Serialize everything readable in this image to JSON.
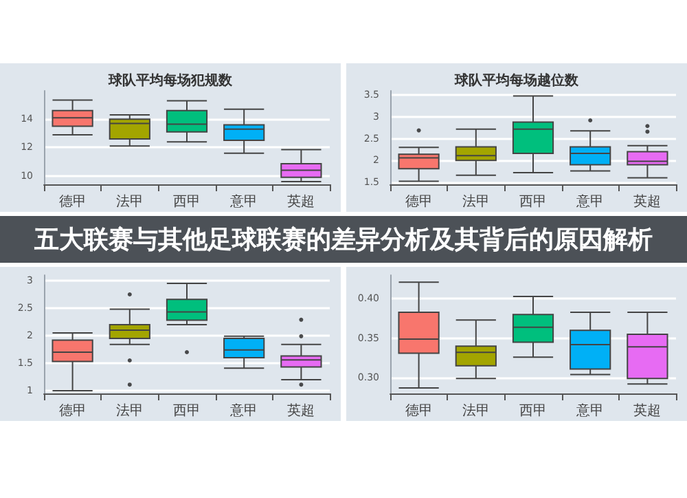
{
  "chart_data": [
    {
      "type": "box",
      "title": "球队平均每场犯规数",
      "categories": [
        "德甲",
        "法甲",
        "西甲",
        "意甲",
        "英超"
      ],
      "colors": [
        "#f8766d",
        "#a3a500",
        "#00bf7d",
        "#00b0f6",
        "#e76bf3"
      ],
      "ylim": [
        9.4,
        16
      ],
      "yticks": [
        10,
        12,
        14
      ],
      "grid": "y",
      "boxes": [
        {
          "low": 12.9,
          "q1": 13.5,
          "median": 14.1,
          "q3": 14.6,
          "high": 15.35
        },
        {
          "low": 12.1,
          "q1": 12.6,
          "median": 13.7,
          "q3": 14.0,
          "high": 14.3
        },
        {
          "low": 12.4,
          "q1": 13.1,
          "median": 13.65,
          "q3": 14.6,
          "high": 15.3
        },
        {
          "low": 11.6,
          "q1": 12.5,
          "median": 13.3,
          "q3": 13.6,
          "high": 14.7
        },
        {
          "low": 9.6,
          "q1": 9.9,
          "median": 10.4,
          "q3": 10.85,
          "high": 11.85
        }
      ]
    },
    {
      "type": "box",
      "title": "球队平均每场越位数",
      "categories": [
        "德甲",
        "法甲",
        "西甲",
        "意甲",
        "英超"
      ],
      "colors": [
        "#f8766d",
        "#a3a500",
        "#00bf7d",
        "#00b0f6",
        "#e76bf3"
      ],
      "ylim": [
        1.45,
        3.6
      ],
      "yticks": [
        1.5,
        2.0,
        2.5,
        3.0,
        3.5
      ],
      "grid": "y",
      "boxes": [
        {
          "low": 1.52,
          "q1": 1.81,
          "median": 2.06,
          "q3": 2.14,
          "high": 2.3,
          "outliers": [
            2.69
          ]
        },
        {
          "low": 1.66,
          "q1": 2.0,
          "median": 2.11,
          "q3": 2.31,
          "high": 2.72
        },
        {
          "low": 1.72,
          "q1": 2.16,
          "median": 2.72,
          "q3": 2.88,
          "high": 3.48
        },
        {
          "low": 1.76,
          "q1": 1.9,
          "median": 2.16,
          "q3": 2.31,
          "high": 2.68,
          "outliers": [
            2.92
          ]
        },
        {
          "low": 1.6,
          "q1": 1.9,
          "median": 1.98,
          "q3": 2.2,
          "high": 2.34,
          "outliers": [
            2.79,
            2.66
          ]
        }
      ]
    },
    {
      "type": "other",
      "title": "五大联赛与其他足球联赛的差异分析及其背后的原因解析"
    },
    {
      "type": "box",
      "categories": [
        "德甲",
        "法甲",
        "西甲",
        "意甲",
        "英超"
      ],
      "colors": [
        "#f8766d",
        "#a3a500",
        "#00bf7d",
        "#00b0f6",
        "#e76bf3"
      ],
      "ylim": [
        0.95,
        3.1
      ],
      "yticks": [
        1.0,
        1.5,
        2.0,
        2.5,
        3.0
      ],
      "grid": "y",
      "boxes": [
        {
          "low": 1.0,
          "q1": 1.53,
          "median": 1.7,
          "q3": 1.92,
          "high": 2.05
        },
        {
          "low": 1.84,
          "q1": 1.95,
          "median": 2.1,
          "q3": 2.2,
          "high": 2.48,
          "outliers": [
            2.75,
            1.55,
            1.11
          ]
        },
        {
          "low": 2.2,
          "q1": 2.28,
          "median": 2.43,
          "q3": 2.66,
          "high": 2.95,
          "outliers": [
            1.7
          ]
        },
        {
          "low": 1.41,
          "q1": 1.6,
          "median": 1.74,
          "q3": 1.95,
          "high": 1.99
        },
        {
          "low": 1.2,
          "q1": 1.43,
          "median": 1.56,
          "q3": 1.63,
          "high": 1.84,
          "outliers": [
            2.29,
            1.99,
            1.11
          ]
        }
      ]
    },
    {
      "type": "box",
      "categories": [
        "德甲",
        "法甲",
        "西甲",
        "意甲",
        "英超"
      ],
      "colors": [
        "#f8766d",
        "#a3a500",
        "#00bf7d",
        "#00b0f6",
        "#e76bf3"
      ],
      "ylim": [
        0.28,
        0.43
      ],
      "yticks": [
        {
          "value": 0.3,
          "label": "0.30"
        },
        {
          "value": 0.35,
          "label": "0.35"
        },
        {
          "value": 0.4,
          "label": "0.40"
        }
      ],
      "grid": "y",
      "boxes": [
        {
          "low": 0.287,
          "q1": 0.331,
          "median": 0.349,
          "q3": 0.383,
          "high": 0.421
        },
        {
          "low": 0.299,
          "q1": 0.315,
          "median": 0.332,
          "q3": 0.34,
          "high": 0.373
        },
        {
          "low": 0.326,
          "q1": 0.345,
          "median": 0.364,
          "q3": 0.38,
          "high": 0.403
        },
        {
          "low": 0.304,
          "q1": 0.311,
          "median": 0.342,
          "q3": 0.36,
          "high": 0.383
        },
        {
          "low": 0.292,
          "q1": 0.299,
          "median": 0.339,
          "q3": 0.355,
          "high": 0.383
        }
      ]
    }
  ]
}
